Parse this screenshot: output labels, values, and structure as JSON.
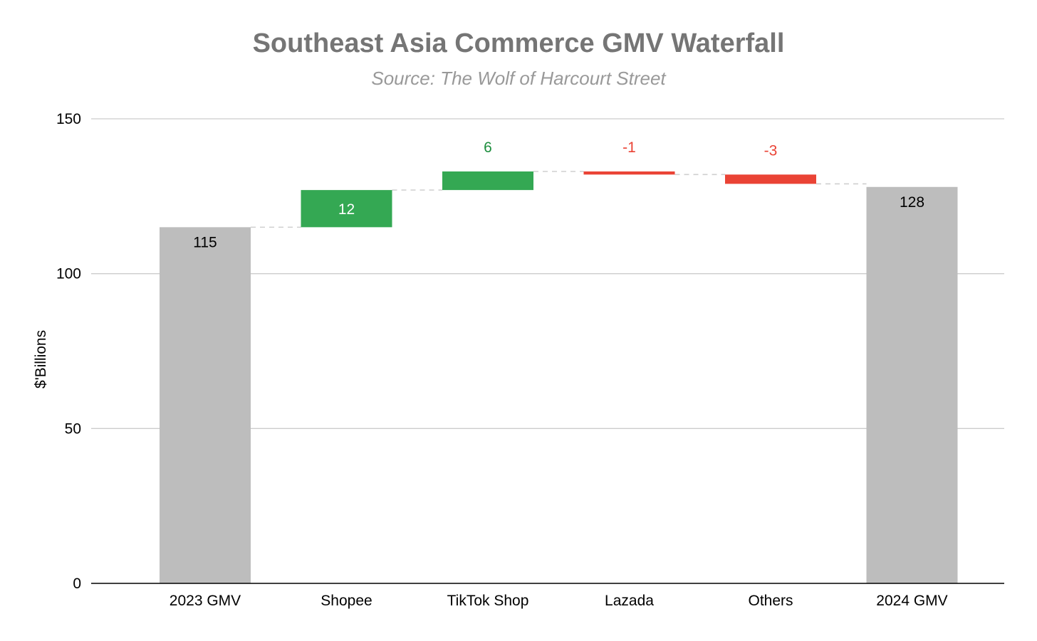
{
  "chart_data": {
    "type": "bar",
    "subtype": "waterfall",
    "title": "Southeast Asia Commerce GMV Waterfall",
    "subtitle": "Source: The Wolf of Harcourt Street",
    "xlabel": "",
    "ylabel": "$'Billions",
    "ylim": [
      0,
      150
    ],
    "yticks": [
      "0",
      "50",
      "100",
      "150"
    ],
    "grid": true,
    "legend": "none",
    "categories": [
      "2023 GMV",
      "Shopee",
      "TikTok Shop",
      "Lazada",
      "Others",
      "2024 GMV"
    ],
    "steps": [
      {
        "category": "2023 GMV",
        "kind": "total",
        "value": 115,
        "label": "115"
      },
      {
        "category": "Shopee",
        "kind": "increase",
        "value": 12,
        "label": "12"
      },
      {
        "category": "TikTok Shop",
        "kind": "increase",
        "value": 6,
        "label": "6"
      },
      {
        "category": "Lazada",
        "kind": "decrease",
        "value": -1,
        "label": "-1"
      },
      {
        "category": "Others",
        "kind": "decrease",
        "value": -3,
        "label": "-3"
      },
      {
        "category": "2024 GMV",
        "kind": "total",
        "value": 128,
        "label": "128"
      }
    ],
    "colors": {
      "total": "#bdbdbd",
      "increase": "#34a853",
      "decrease": "#ea4335",
      "increase_label": "#1e8e3e",
      "decrease_label": "#ea4335",
      "grid": "#cccccc",
      "axis": "#000000",
      "connector": "#cfcfcf"
    }
  }
}
